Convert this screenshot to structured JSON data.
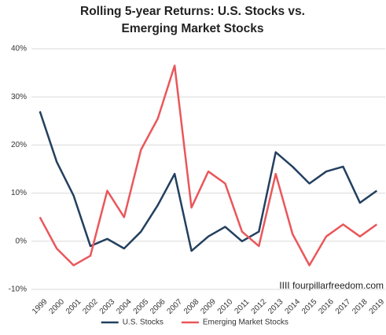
{
  "chart_data": {
    "type": "line",
    "title": "Rolling 5-year Returns: U.S. Stocks vs. Emerging Market Stocks",
    "categories": [
      "1999",
      "2000",
      "2001",
      "2002",
      "2003",
      "2004",
      "2005",
      "2006",
      "2007",
      "2008",
      "2009",
      "2010",
      "2011",
      "2012",
      "2013",
      "2014",
      "2015",
      "2016",
      "2017",
      "2018",
      "2019"
    ],
    "series": [
      {
        "name": "U.S. Stocks",
        "color": "#23405f",
        "values": [
          27,
          16.5,
          9.5,
          -1,
          0.5,
          -1.5,
          2,
          7.5,
          14,
          -2,
          1,
          3,
          0,
          2,
          18.5,
          15.5,
          12,
          14.5,
          15.5,
          8,
          10.5
        ]
      },
      {
        "name": "Emerging Market Stocks",
        "color": "#e9575b",
        "values": [
          5,
          -1.5,
          -5,
          -3,
          10.5,
          5,
          19,
          25.5,
          36.5,
          7,
          14.5,
          12,
          2,
          -1,
          14,
          1.5,
          -5,
          1,
          3.5,
          1,
          3.5
        ]
      }
    ],
    "ylim": [
      -10,
      40
    ],
    "yticks": [
      {
        "value": -10,
        "label": "-10%"
      },
      {
        "value": 0,
        "label": "0%"
      },
      {
        "value": 10,
        "label": "10%"
      },
      {
        "value": 20,
        "label": "20%"
      },
      {
        "value": 30,
        "label": "30%"
      },
      {
        "value": 40,
        "label": "40%"
      }
    ],
    "grid": true,
    "legend": "bottom",
    "watermark": "IIII fourpillarfreedom.com"
  }
}
